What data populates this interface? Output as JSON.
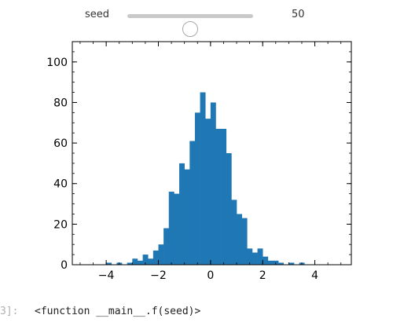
{
  "widget": {
    "label": "seed",
    "value": "50",
    "slider_fraction": 0.5
  },
  "output": {
    "prompt": "3]:",
    "text": "<function __main__.f(seed)>"
  },
  "colors": {
    "bar": "#1f77b4"
  },
  "chart_data": {
    "type": "bar",
    "title": "",
    "xlabel": "",
    "ylabel": "",
    "xlim": [
      -5.3,
      5.4
    ],
    "ylim": [
      0,
      110
    ],
    "xticks": [
      -4,
      -2,
      0,
      2,
      4
    ],
    "xtick_labels": [
      "−4",
      "−2",
      "0",
      "2",
      "4"
    ],
    "yticks": [
      0,
      20,
      40,
      60,
      80,
      100
    ],
    "ytick_labels": [
      "0",
      "20",
      "40",
      "60",
      "80",
      "100"
    ],
    "grid": false,
    "bin_edges": [
      -4.0,
      -3.8,
      -3.6,
      -3.4,
      -3.2,
      -3.0,
      -2.8,
      -2.6,
      -2.4,
      -2.2,
      -2.0,
      -1.8,
      -1.6,
      -1.4,
      -1.2,
      -1.0,
      -0.8,
      -0.6,
      -0.4,
      -0.2,
      0.0,
      0.2,
      0.4,
      0.6,
      0.8,
      1.0,
      1.2,
      1.4,
      1.6,
      1.8,
      2.0,
      2.2,
      2.4,
      2.6,
      2.8,
      3.0,
      3.2,
      3.4,
      3.6
    ],
    "values": [
      1,
      0,
      1,
      0,
      1,
      3,
      2,
      5,
      3,
      7,
      10,
      18,
      36,
      35,
      50,
      47,
      61,
      75,
      85,
      72,
      80,
      67,
      67,
      55,
      32,
      25,
      23,
      8,
      6,
      8,
      4,
      2,
      2,
      1,
      0,
      1,
      0,
      1
    ]
  }
}
